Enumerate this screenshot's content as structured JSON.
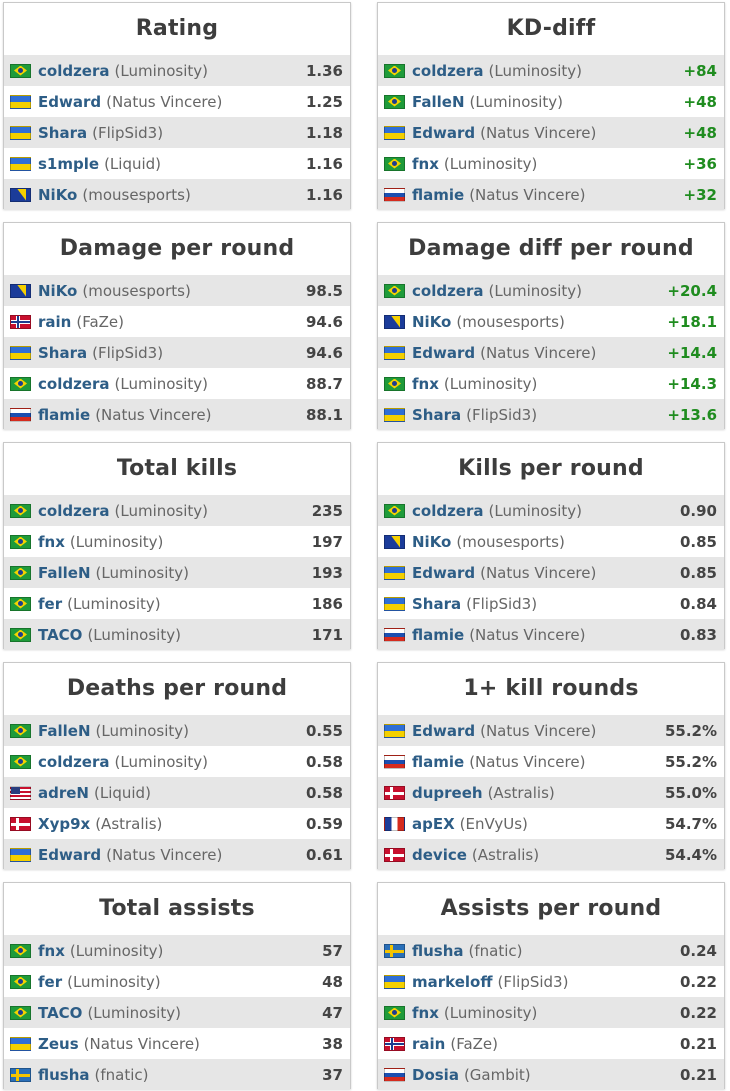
{
  "panels": [
    {
      "title": "Rating",
      "rows": [
        {
          "flag": "br",
          "name": "coldzera",
          "team": "(Luminosity)",
          "value": "1.36"
        },
        {
          "flag": "ua",
          "name": "Edward",
          "team": "(Natus Vincere)",
          "value": "1.25"
        },
        {
          "flag": "ua",
          "name": "Shara",
          "team": "(FlipSid3)",
          "value": "1.18"
        },
        {
          "flag": "ua",
          "name": "s1mple",
          "team": "(Liquid)",
          "value": "1.16"
        },
        {
          "flag": "ba",
          "name": "NiKo",
          "team": "(mousesports)",
          "value": "1.16"
        }
      ]
    },
    {
      "title": "KD-diff",
      "positive": true,
      "rows": [
        {
          "flag": "br",
          "name": "coldzera",
          "team": "(Luminosity)",
          "value": "+84"
        },
        {
          "flag": "br",
          "name": "FalleN",
          "team": "(Luminosity)",
          "value": "+48"
        },
        {
          "flag": "ua",
          "name": "Edward",
          "team": "(Natus Vincere)",
          "value": "+48"
        },
        {
          "flag": "br",
          "name": "fnx",
          "team": "(Luminosity)",
          "value": "+36"
        },
        {
          "flag": "ru",
          "name": "flamie",
          "team": "(Natus Vincere)",
          "value": "+32"
        }
      ]
    },
    {
      "title": "Damage per round",
      "rows": [
        {
          "flag": "ba",
          "name": "NiKo",
          "team": "(mousesports)",
          "value": "98.5"
        },
        {
          "flag": "no",
          "name": "rain",
          "team": "(FaZe)",
          "value": "94.6"
        },
        {
          "flag": "ua",
          "name": "Shara",
          "team": "(FlipSid3)",
          "value": "94.6"
        },
        {
          "flag": "br",
          "name": "coldzera",
          "team": "(Luminosity)",
          "value": "88.7"
        },
        {
          "flag": "ru",
          "name": "flamie",
          "team": "(Natus Vincere)",
          "value": "88.1"
        }
      ]
    },
    {
      "title": "Damage diff per round",
      "positive": true,
      "rows": [
        {
          "flag": "br",
          "name": "coldzera",
          "team": "(Luminosity)",
          "value": "+20.4"
        },
        {
          "flag": "ba",
          "name": "NiKo",
          "team": "(mousesports)",
          "value": "+18.1"
        },
        {
          "flag": "ua",
          "name": "Edward",
          "team": "(Natus Vincere)",
          "value": "+14.4"
        },
        {
          "flag": "br",
          "name": "fnx",
          "team": "(Luminosity)",
          "value": "+14.3"
        },
        {
          "flag": "ua",
          "name": "Shara",
          "team": "(FlipSid3)",
          "value": "+13.6"
        }
      ]
    },
    {
      "title": "Total kills",
      "rows": [
        {
          "flag": "br",
          "name": "coldzera",
          "team": "(Luminosity)",
          "value": "235"
        },
        {
          "flag": "br",
          "name": "fnx",
          "team": "(Luminosity)",
          "value": "197"
        },
        {
          "flag": "br",
          "name": "FalleN",
          "team": "(Luminosity)",
          "value": "193"
        },
        {
          "flag": "br",
          "name": "fer",
          "team": "(Luminosity)",
          "value": "186"
        },
        {
          "flag": "br",
          "name": "TACO",
          "team": "(Luminosity)",
          "value": "171"
        }
      ]
    },
    {
      "title": "Kills per round",
      "rows": [
        {
          "flag": "br",
          "name": "coldzera",
          "team": "(Luminosity)",
          "value": "0.90"
        },
        {
          "flag": "ba",
          "name": "NiKo",
          "team": "(mousesports)",
          "value": "0.85"
        },
        {
          "flag": "ua",
          "name": "Edward",
          "team": "(Natus Vincere)",
          "value": "0.85"
        },
        {
          "flag": "ua",
          "name": "Shara",
          "team": "(FlipSid3)",
          "value": "0.84"
        },
        {
          "flag": "ru",
          "name": "flamie",
          "team": "(Natus Vincere)",
          "value": "0.83"
        }
      ]
    },
    {
      "title": "Deaths per round",
      "rows": [
        {
          "flag": "br",
          "name": "FalleN",
          "team": "(Luminosity)",
          "value": "0.55"
        },
        {
          "flag": "br",
          "name": "coldzera",
          "team": "(Luminosity)",
          "value": "0.58"
        },
        {
          "flag": "us",
          "name": "adreN",
          "team": "(Liquid)",
          "value": "0.58"
        },
        {
          "flag": "dk",
          "name": "Xyp9x",
          "team": "(Astralis)",
          "value": "0.59"
        },
        {
          "flag": "ua",
          "name": "Edward",
          "team": "(Natus Vincere)",
          "value": "0.61"
        }
      ]
    },
    {
      "title": "1+ kill rounds",
      "rows": [
        {
          "flag": "ua",
          "name": "Edward",
          "team": "(Natus Vincere)",
          "value": "55.2%"
        },
        {
          "flag": "ru",
          "name": "flamie",
          "team": "(Natus Vincere)",
          "value": "55.2%"
        },
        {
          "flag": "dk",
          "name": "dupreeh",
          "team": "(Astralis)",
          "value": "55.0%"
        },
        {
          "flag": "fr",
          "name": "apEX",
          "team": "(EnVyUs)",
          "value": "54.7%"
        },
        {
          "flag": "dk",
          "name": "device",
          "team": "(Astralis)",
          "value": "54.4%"
        }
      ]
    },
    {
      "title": "Total assists",
      "rows": [
        {
          "flag": "br",
          "name": "fnx",
          "team": "(Luminosity)",
          "value": "57"
        },
        {
          "flag": "br",
          "name": "fer",
          "team": "(Luminosity)",
          "value": "48"
        },
        {
          "flag": "br",
          "name": "TACO",
          "team": "(Luminosity)",
          "value": "47"
        },
        {
          "flag": "ua",
          "name": "Zeus",
          "team": "(Natus Vincere)",
          "value": "38"
        },
        {
          "flag": "se",
          "name": "flusha",
          "team": "(fnatic)",
          "value": "37"
        }
      ]
    },
    {
      "title": "Assists per round",
      "rows": [
        {
          "flag": "se",
          "name": "flusha",
          "team": "(fnatic)",
          "value": "0.24"
        },
        {
          "flag": "ua",
          "name": "markeloff",
          "team": "(FlipSid3)",
          "value": "0.22"
        },
        {
          "flag": "br",
          "name": "fnx",
          "team": "(Luminosity)",
          "value": "0.22"
        },
        {
          "flag": "no",
          "name": "rain",
          "team": "(FaZe)",
          "value": "0.21"
        },
        {
          "flag": "ru",
          "name": "Dosia",
          "team": "(Gambit)",
          "value": "0.21"
        }
      ]
    }
  ]
}
